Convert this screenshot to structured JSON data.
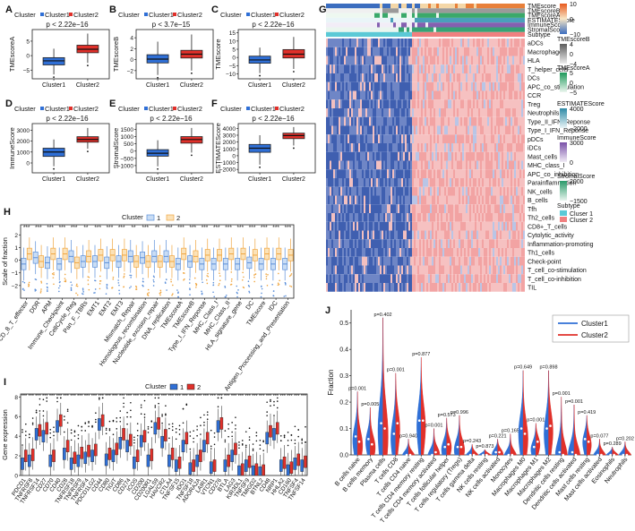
{
  "colors": {
    "cluster1": "#2f6fd6",
    "cluster2": "#e0302a",
    "hm_low": "#2f54a8",
    "hm_high": "#ef7f7f"
  },
  "chart_data": [
    {
      "panel": "A",
      "type": "box",
      "legend_title": "Cluster",
      "legend": [
        "Cluster1",
        "Cluster2"
      ],
      "pvalue": "p < 2.22e−16",
      "ylabel": "TMEscoreA",
      "categories": [
        "Cluster1",
        "Cluster2"
      ],
      "yticks": [
        -5,
        0,
        5
      ],
      "ylim": [
        -8,
        9
      ],
      "boxes": [
        {
          "q1": -3.2,
          "median": -1.8,
          "q3": -0.7,
          "min": -6.5,
          "max": 2.4
        },
        {
          "q1": 1.0,
          "median": 2.2,
          "q3": 3.6,
          "min": -2.5,
          "max": 7.6
        }
      ]
    },
    {
      "panel": "B",
      "type": "box",
      "legend_title": "Cluster",
      "legend": [
        "Cluster1",
        "Cluster2"
      ],
      "pvalue": "p < 3.7e−15",
      "ylabel": "TMEscoreB",
      "categories": [
        "Cluster1",
        "Cluster2"
      ],
      "yticks": [
        -2,
        0,
        2,
        4
      ],
      "ylim": [
        -3.5,
        5.5
      ],
      "boxes": [
        {
          "q1": -0.6,
          "median": 0.1,
          "q3": 0.9,
          "min": -2.8,
          "max": 3.3
        },
        {
          "q1": 0.3,
          "median": 1.0,
          "q3": 1.7,
          "min": -2.0,
          "max": 4.6
        }
      ]
    },
    {
      "panel": "C",
      "type": "box",
      "legend_title": "Cluster",
      "legend": [
        "Cluster1",
        "Cluster2"
      ],
      "pvalue": "p < 2.22e−16",
      "ylabel": "TMEscore",
      "categories": [
        "Cluster1",
        "Cluster2"
      ],
      "yticks": [
        -10,
        -5,
        0,
        5,
        10,
        15
      ],
      "ylim": [
        -13,
        17
      ],
      "boxes": [
        {
          "q1": -3.5,
          "median": -1.5,
          "q3": 0.8,
          "min": -9.5,
          "max": 6.0
        },
        {
          "q1": -0.3,
          "median": 2.0,
          "q3": 4.8,
          "min": -7.0,
          "max": 12.5
        }
      ]
    },
    {
      "panel": "D",
      "type": "box",
      "legend_title": "Cluster",
      "legend": [
        "Cluster1",
        "Cluster2"
      ],
      "pvalue": "p < 2.22e−16",
      "ylabel": "ImmuneScore",
      "categories": [
        "Cluster1",
        "Cluster2"
      ],
      "yticks": [
        0,
        1000,
        2000,
        3000
      ],
      "ylim": [
        -900,
        3600
      ],
      "boxes": [
        {
          "q1": 600,
          "median": 1000,
          "q3": 1350,
          "min": -300,
          "max": 2150
        },
        {
          "q1": 1900,
          "median": 2150,
          "q3": 2400,
          "min": 1300,
          "max": 3200
        }
      ]
    },
    {
      "panel": "E",
      "type": "box",
      "legend_title": "Cluster",
      "legend": [
        "Cluster1",
        "Cluster2"
      ],
      "pvalue": "p < 2.22e−16",
      "ylabel": "StromalScore",
      "categories": [
        "Cluster1",
        "Cluster2"
      ],
      "yticks": [
        -1000,
        -500,
        0,
        500,
        1000,
        1500
      ],
      "ylim": [
        -1500,
        1900
      ],
      "boxes": [
        {
          "q1": -350,
          "median": -150,
          "q3": 100,
          "min": -1050,
          "max": 750
        },
        {
          "q1": 550,
          "median": 800,
          "q3": 1000,
          "min": -100,
          "max": 1600
        }
      ]
    },
    {
      "panel": "F",
      "type": "box",
      "legend_title": "Cluster",
      "legend": [
        "Cluster1",
        "Cluster2"
      ],
      "pvalue": "p < 2.22e−16",
      "ylabel": "ESTIMATEScore",
      "categories": [
        "Cluster1",
        "Cluster2"
      ],
      "yticks": [
        -2000,
        -1000,
        0,
        1000,
        2000,
        3000,
        4000
      ],
      "ylim": [
        -2500,
        4700
      ],
      "boxes": [
        {
          "q1": 500,
          "median": 1100,
          "q3": 1650,
          "min": -1300,
          "max": 3000
        },
        {
          "q1": 2500,
          "median": 2950,
          "q3": 3300,
          "min": 1500,
          "max": 4200
        }
      ]
    },
    {
      "panel": "G",
      "type": "heatmap",
      "annotation_rows": [
        "TMEscore",
        "TMEscoreB",
        "TMEscoreA",
        "ESTIMATEScore",
        "ImmuneScore",
        "StromalScore",
        "Subtype"
      ],
      "rows": [
        "aDCs",
        "Macrophages",
        "HLA",
        "T_helper_cells",
        "DCs",
        "APC_co_stimulation",
        "CCR",
        "Treg",
        "Neutrophils",
        "Type_II_IFN_Reponse",
        "Type_I_IFN_Reponse",
        "pDCs",
        "iDCs",
        "Mast_cells",
        "MHC_class_I",
        "APC_co_inhibition",
        "Parainflammation",
        "NK_cells",
        "B_cells",
        "Tfh",
        "Th2_cells",
        "CD8+_T_cells",
        "Cytolytic_activity",
        "Inflammation-promoting",
        "Th1_cells",
        "Check-point",
        "T_cell_co-stimulation",
        "T_cell_co-inhibition",
        "TIL"
      ],
      "cluster_split_fraction": 0.43,
      "legends": [
        {
          "title": "",
          "ticks": [
            "10",
            "0",
            "−10"
          ],
          "colors": [
            "#e85a1e",
            "#f7e6c6",
            "#3b6dbf"
          ]
        },
        {
          "title": "TMEscoreB",
          "ticks": [
            "4",
            "0",
            "−4"
          ],
          "colors": [
            "#5d5d5d",
            "#ededed"
          ]
        },
        {
          "title": "TMEscoreA",
          "ticks": [
            "5",
            "0",
            "−5"
          ],
          "colors": [
            "#1f9a5b",
            "#ecf6ef"
          ]
        },
        {
          "title": "ESTIMATEScore",
          "ticks": [
            "4000",
            "−2000"
          ],
          "colors": [
            "#2f8aa6",
            "#e9f4f7"
          ]
        },
        {
          "title": "ImmuneScore",
          "ticks": [
            "3000",
            "0"
          ],
          "colors": [
            "#7a52a9",
            "#f1ecf6"
          ]
        },
        {
          "title": "StromalScore",
          "ticks": [
            "2000",
            "−1500"
          ],
          "colors": [
            "#2a9a6a",
            "#e8f5ee"
          ]
        },
        {
          "title": "Subtype",
          "ticks": [
            "Cluser 1",
            "Cluser 2"
          ],
          "colors": [
            "#5bc9d6",
            "#f08080"
          ]
        }
      ]
    },
    {
      "panel": "H",
      "type": "box",
      "legend_title": "Cluster",
      "legend": [
        "1",
        "2"
      ],
      "ylabel": "Scale of fraction",
      "yticks": [
        -2,
        -1,
        0,
        1,
        2
      ],
      "ylim": [
        -3,
        2.8
      ],
      "categories": [
        "CD_8_T_effector",
        "DDR",
        "APM",
        "Immune_Checkpoint",
        "CellCycle_Reg",
        "Pan_F_TBRs",
        "EMT1",
        "EMT2",
        "EMT3",
        "Mismatch_Repair",
        "Homologous_recombination",
        "Nucleotide_excision_repair",
        "DNA_replication",
        "TMEscoreA",
        "TMEscoreB",
        "Type_I_IFN_Reponse",
        "MHC_Class_I",
        "MHC_Class_II",
        "HLA_signature_gene",
        "DC",
        "TMEscore",
        "IDC",
        "Antigen_Processing_and_Presentation"
      ],
      "significance": [
        "***",
        "***",
        "***",
        "***",
        "***",
        "**",
        "***",
        "***",
        "***",
        "**",
        "***",
        "**",
        "***",
        "***",
        "***",
        "***",
        "***",
        "***",
        "***",
        "***",
        "***",
        "***",
        "***"
      ],
      "series": [
        {
          "name": "1",
          "medians": [
            -0.3,
            0.2,
            -0.2,
            -0.3,
            0.3,
            -0.1,
            -0.1,
            -0.2,
            -0.1,
            0.3,
            0.2,
            0.3,
            0.3,
            -0.3,
            -0.1,
            -0.3,
            -0.3,
            -0.3,
            -0.3,
            -0.2,
            -0.3,
            -0.3,
            -0.3
          ]
        },
        {
          "name": "2",
          "medians": [
            0.5,
            -0.1,
            0.5,
            0.5,
            -0.2,
            0.3,
            0.4,
            0.4,
            0.4,
            -0.1,
            -0.1,
            -0.1,
            -0.1,
            0.5,
            0.3,
            0.4,
            0.4,
            0.5,
            0.5,
            0.4,
            0.5,
            0.5,
            0.4
          ]
        }
      ]
    },
    {
      "panel": "I",
      "type": "box",
      "legend_title": "Cluster",
      "legend": [
        "1",
        "2"
      ],
      "ylabel": "Gene expression",
      "yticks": [
        0,
        2,
        4,
        6,
        8
      ],
      "ylim": [
        0,
        8.3
      ],
      "categories": [
        "PDCD1",
        "TNFRSF8",
        "TNFRSF14",
        "CD27",
        "CD70",
        "CD40",
        "CD28",
        "TNFRSF18",
        "TNFRSF9",
        "TNFRSF4",
        "PDCD1LG2",
        "CD44",
        "CD80",
        "TIGIT",
        "CD86",
        "CD274",
        "ICOS",
        "CD200",
        "CD200R1",
        "LGALS9",
        "HAVCR2",
        "CTLA4",
        "TNFSF15",
        "IDO1",
        "TNFSF18",
        "ADORA2A",
        "LAIR1",
        "VTCN1",
        "CD276",
        "BTLA",
        "LAG3",
        "KIR3DL1",
        "TNFSF9",
        "TMIGD2",
        "BTNL2",
        "CD48",
        "NRP1",
        "HHLA2",
        "CD160",
        "TNFSF4",
        "TNFSF14"
      ],
      "series": [
        {
          "name": "1",
          "medians": [
            1.2,
            1.5,
            4.2,
            4.0,
            1.5,
            5.0,
            2.2,
            1.2,
            1.5,
            1.8,
            2.0,
            5.2,
            1.6,
            2.0,
            3.3,
            3.0,
            1.3,
            3.5,
            1.5,
            4.8,
            3.4,
            1.5,
            1.0,
            3.0,
            0.7,
            1.5,
            3.0,
            0.8,
            5.0,
            1.0,
            2.0,
            0.4,
            1.0,
            0.4,
            0.3,
            3.8,
            4.2,
            1.0,
            0.5,
            1.2,
            1.0
          ]
        },
        {
          "name": "2",
          "medians": [
            2.0,
            2.1,
            4.6,
            4.8,
            2.0,
            5.6,
            3.0,
            1.8,
            2.3,
            2.5,
            2.6,
            5.6,
            2.2,
            2.7,
            4.2,
            3.6,
            2.0,
            4.0,
            2.1,
            5.3,
            4.1,
            2.2,
            1.3,
            3.8,
            1.0,
            2.0,
            3.8,
            1.0,
            5.3,
            1.5,
            2.7,
            0.6,
            1.4,
            0.6,
            0.5,
            4.5,
            4.8,
            1.3,
            0.8,
            1.6,
            1.4
          ]
        }
      ]
    },
    {
      "panel": "J",
      "type": "violin",
      "legend": [
        "Cluster1",
        "Cluster2"
      ],
      "ylabel": "Fraction",
      "yticks": [
        0.0,
        0.1,
        0.2,
        0.3,
        0.4,
        0.5
      ],
      "ylim": [
        0,
        0.55
      ],
      "categories": [
        "B cells naive",
        "B cells memory",
        "Plasma cells",
        "T cells CD8",
        "T cells CD4 naive",
        "T cells CD4 memory resting",
        "T cells CD4 memory activated",
        "T cells follicular helper",
        "T cells regulatory (Tregs)",
        "T cells gamma delta",
        "NK cells resting",
        "NK cells activated",
        "Monocytes",
        "Macrophages M0",
        "Macrophages M1",
        "Macrophages M2",
        "Dendritic cells resting",
        "Dendritic cells activated",
        "Mast cells resting",
        "Mast cells activated",
        "Eosinophils",
        "Neutrophils"
      ],
      "pvalues": [
        "p=0.001",
        "p=0.005",
        "p=0.402",
        "p=0.001",
        "p=0.940",
        "p=0.877",
        "p=0.001",
        "p=0.573",
        "p=0.996",
        "p=0.243",
        "p=0.873",
        "p=0.221",
        "p=0.165",
        "p=0.649",
        "p=0.001",
        "p=0.898",
        "p=0.001",
        "p=0.001",
        "p=0.419",
        "p=0.077",
        "p=0.289",
        "p=0.202"
      ],
      "maxima": [
        0.24,
        0.18,
        0.52,
        0.31,
        0.06,
        0.37,
        0.1,
        0.14,
        0.15,
        0.04,
        0.02,
        0.06,
        0.08,
        0.32,
        0.12,
        0.32,
        0.22,
        0.19,
        0.15,
        0.06,
        0.03,
        0.05
      ],
      "series": [
        {
          "name": "Cluster1",
          "medians": [
            0.07,
            0.06,
            0.12,
            0.08,
            0.0,
            0.13,
            0.0,
            0.03,
            0.03,
            0.0,
            0.0,
            0.01,
            0.0,
            0.1,
            0.03,
            0.1,
            0.01,
            0.01,
            0.06,
            0.0,
            0.0,
            0.0
          ]
        },
        {
          "name": "Cluster2",
          "medians": [
            0.05,
            0.04,
            0.1,
            0.12,
            0.0,
            0.13,
            0.01,
            0.04,
            0.03,
            0.0,
            0.0,
            0.01,
            0.0,
            0.08,
            0.05,
            0.11,
            0.0,
            0.0,
            0.05,
            0.0,
            0.0,
            0.0
          ]
        }
      ]
    }
  ]
}
